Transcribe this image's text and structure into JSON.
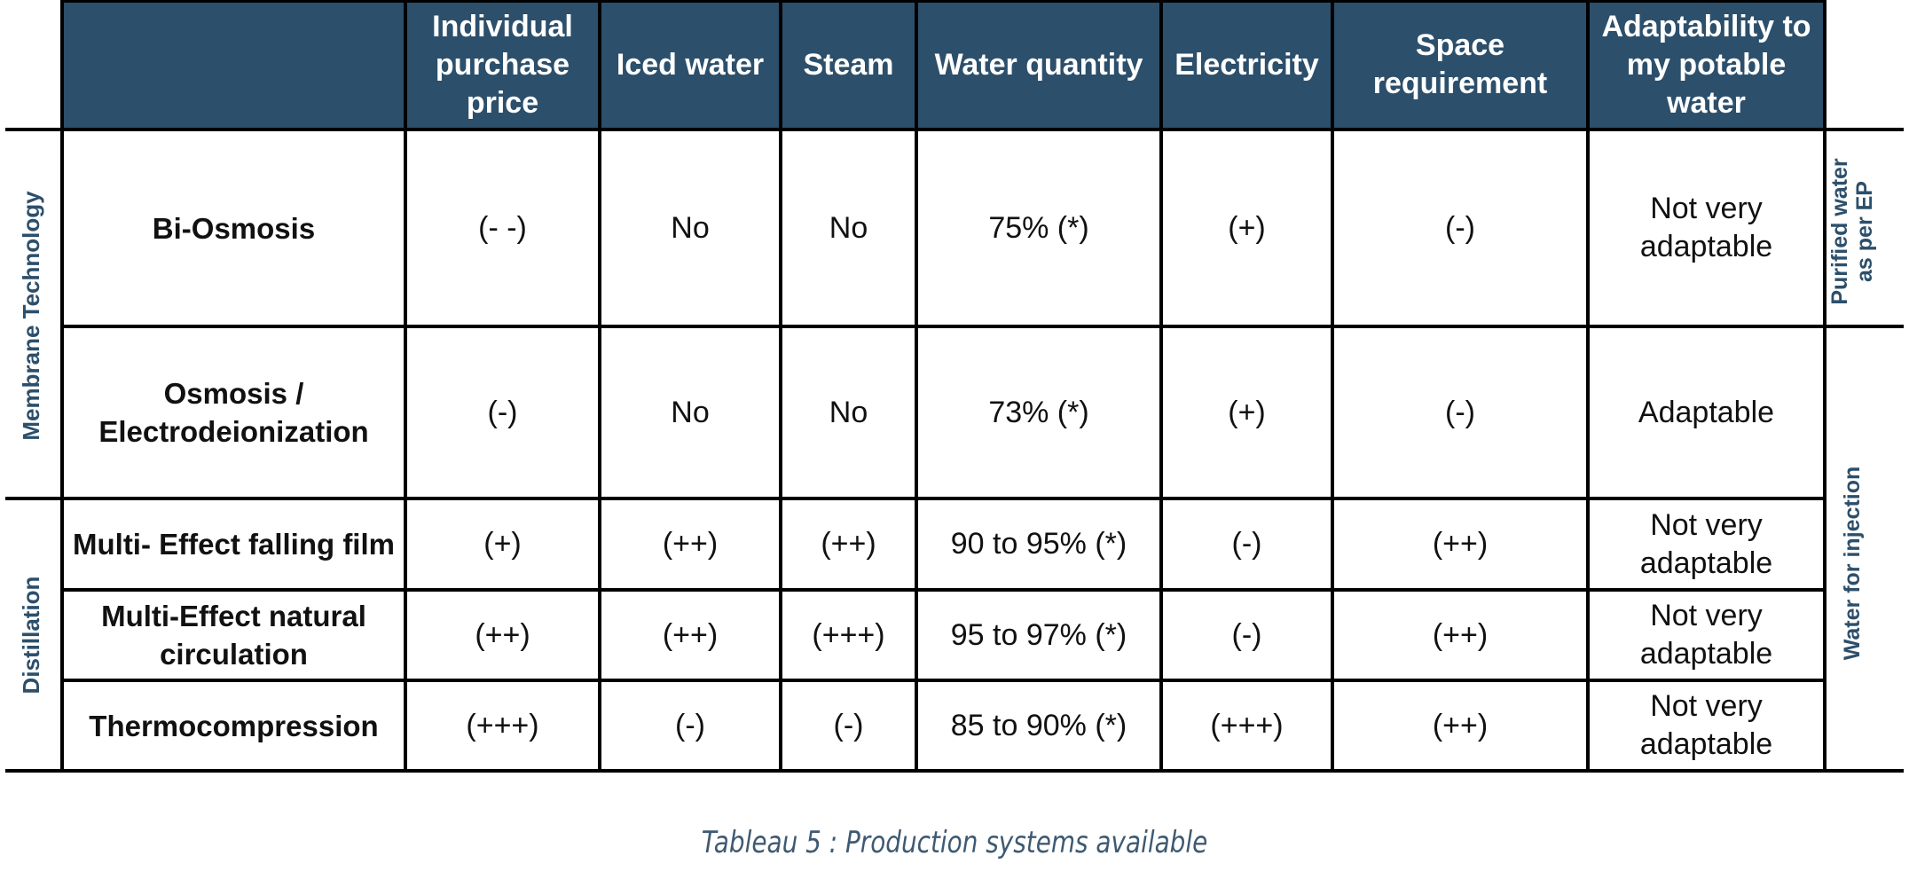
{
  "header": {
    "columns": [
      "Individual purchase price",
      "Iced water",
      "Steam",
      "Water quantity",
      "Electricity",
      "Space requirement",
      "Adaptability to my potable water"
    ]
  },
  "groups": {
    "membrane": "Membrane Technology",
    "distillation": "Distillation"
  },
  "side_labels": {
    "purified": "Purified water as per EP",
    "injection": "Water for injection"
  },
  "rows": [
    {
      "name": "Bi-Osmosis",
      "values": [
        "(- -)",
        "No",
        "No",
        "75% (*)",
        "(+)",
        "(-)",
        "Not very adaptable"
      ]
    },
    {
      "name": "Osmosis / Electrodeionization",
      "values": [
        "(-)",
        "No",
        "No",
        "73% (*)",
        "(+)",
        "(-)",
        "Adaptable"
      ]
    },
    {
      "name": "Multi- Effect falling film",
      "values": [
        "(+)",
        "(++)",
        "(++)",
        "90 to 95% (*)",
        "(-)",
        "(++)",
        "Not very adaptable"
      ]
    },
    {
      "name": "Multi-Effect natural circulation",
      "values": [
        "(++)",
        "(++)",
        "(+++)",
        "95 to 97% (*)",
        "(-)",
        "(++)",
        "Not very adaptable"
      ]
    },
    {
      "name": "Thermocompression",
      "values": [
        "(+++)",
        "(-)",
        "(-)",
        "85 to 90% (*)",
        "(+++)",
        "(++)",
        "Not very adaptable"
      ]
    }
  ],
  "caption": "Tableau 5 : Production systems available"
}
